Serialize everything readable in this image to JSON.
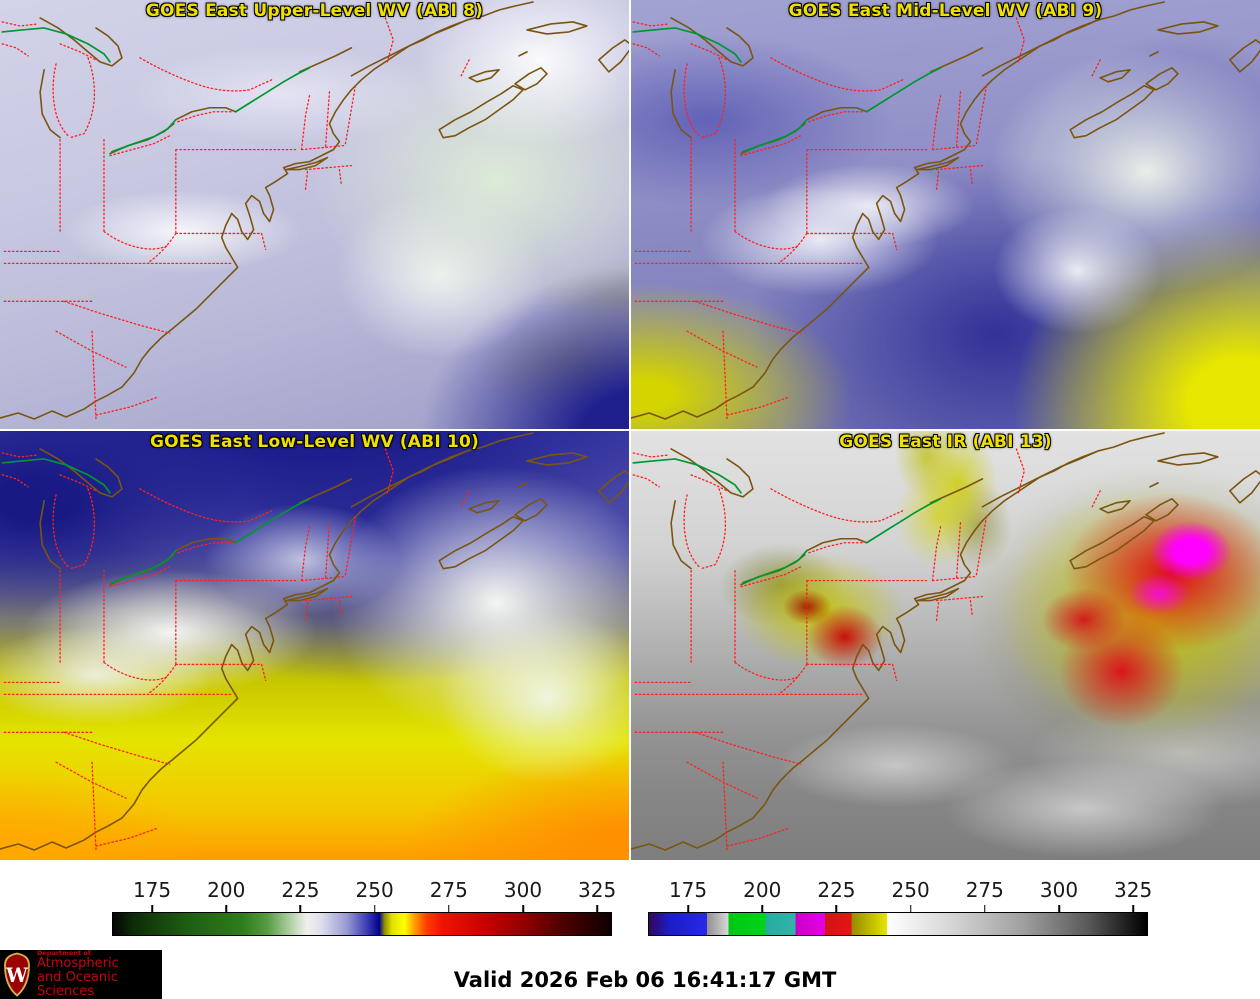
{
  "panels": [
    {
      "title": "GOES East Upper-Level WV (ABI 8)"
    },
    {
      "title": "GOES East Mid-Level WV (ABI 9)"
    },
    {
      "title": "GOES East Low-Level WV (ABI 10)"
    },
    {
      "title": "GOES East IR (ABI 13)"
    }
  ],
  "title_color": "#f0e000",
  "colorbars": [
    {
      "name": "wv-brightness-temperature-colorbar",
      "min": 161.5,
      "max": 330,
      "ticks": [
        175,
        200,
        225,
        250,
        275,
        300,
        325
      ],
      "stops": [
        "#050505 0%",
        "#0d2b08 4%",
        "#1d5a12 14%",
        "#2e7d1c 26%",
        "#579b43 31%",
        "#b9d4ac 36%",
        "#f0f0ee 39%",
        "#dcdcee 42%",
        "#9898d2 47%",
        "#3c3cb4 51%",
        "#00008c 53.5%",
        "#8c8c00 54.5%",
        "#e0e000 56%",
        "#ffff00 58.5%",
        "#ffa000 60.5%",
        "#ff3c00 63%",
        "#f01400 66%",
        "#c80000 75%",
        "#960000 82%",
        "#500000 90%",
        "#0f0000 100%"
      ]
    },
    {
      "name": "ir-brightness-temperature-colorbar",
      "min": 161.5,
      "max": 330,
      "ticks": [
        175,
        200,
        225,
        250,
        275,
        300,
        325
      ],
      "stops": [
        "#30085a 0%",
        "#28108c 2%",
        "#1c1cc8 4%",
        "#2828e6 11.6%",
        "#909090 11.6%",
        "#d8d8d8 16%",
        "#00c814 16%",
        "#00d418 23.4%",
        "#28aaa0 23.4%",
        "#30b4aa 29.4%",
        "#c800c8 29.4%",
        "#e600e6 35.3%",
        "#d21414 35.3%",
        "#e61414 40.7%",
        "#968a00 40.7%",
        "#e6e600 47.8%",
        "#ffffff 47.8%",
        "#d8d8d8 60%",
        "#a0a0a0 75%",
        "#5a5a5a 88%",
        "#000000 100%"
      ]
    }
  ],
  "footer": {
    "valid": "Valid 2026 Feb 06 16:41:17 GMT"
  },
  "logo": {
    "dept": "Department of",
    "line1": "Atmospheric",
    "line2": "and Oceanic Sciences",
    "bg": "#000000",
    "text_color": "#c5050c",
    "crest_letter": "W",
    "crest_shield_color": "#9b0000",
    "crest_border_color": "#d4b24a"
  },
  "map_colors": {
    "state_borders": "#ff2020",
    "coastline": "#7a5510",
    "rivers": "#009632"
  }
}
